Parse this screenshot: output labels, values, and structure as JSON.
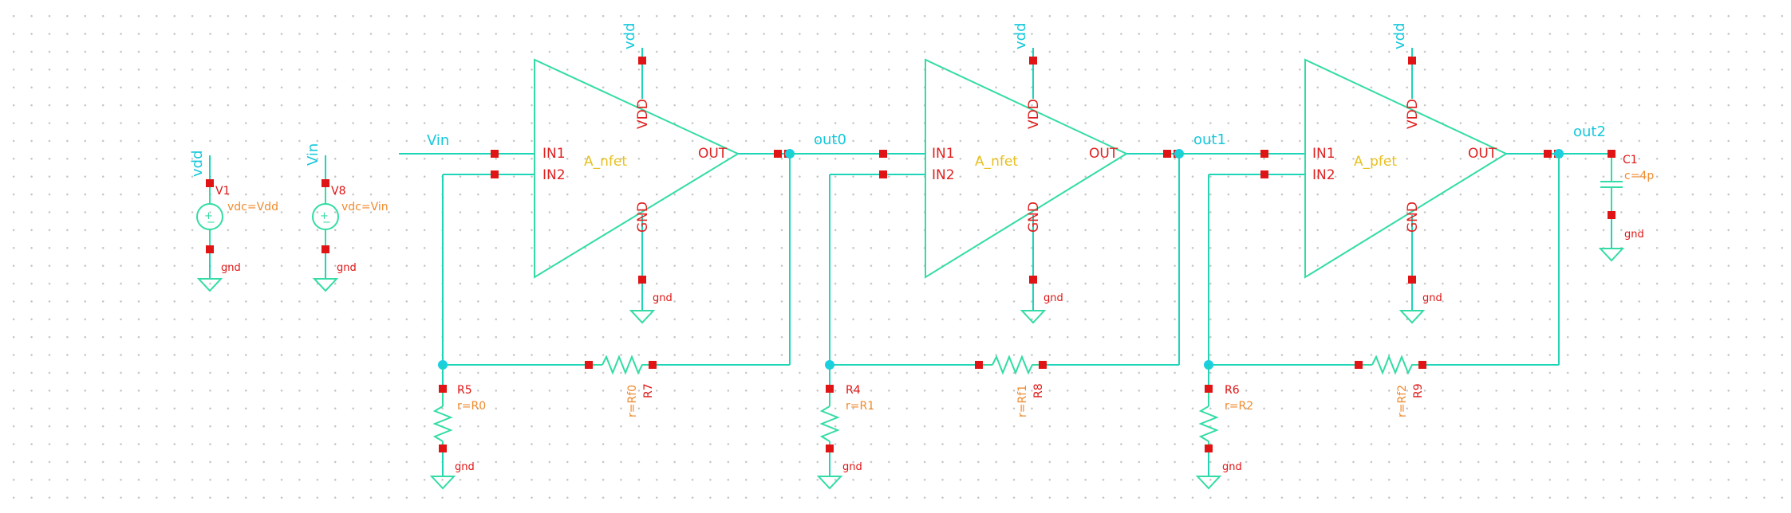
{
  "schematic": {
    "stages": [
      {
        "cell": "A_nfet",
        "in1": "IN1",
        "in2": "IN2",
        "out_pin": "OUT",
        "vdd_pin": "VDD",
        "gnd_pin": "GND",
        "vdd_net": "vdd",
        "gnd_net": "gnd",
        "in_net": "Vin",
        "out_net": "out0"
      },
      {
        "cell": "A_nfet",
        "in1": "IN1",
        "in2": "IN2",
        "out_pin": "OUT",
        "vdd_pin": "VDD",
        "gnd_pin": "GND",
        "vdd_net": "vdd",
        "gnd_net": "gnd",
        "in_net": "out0",
        "out_net": "out1"
      },
      {
        "cell": "A_pfet",
        "in1": "IN1",
        "in2": "IN2",
        "out_pin": "OUT",
        "vdd_pin": "VDD",
        "gnd_pin": "GND",
        "vdd_net": "vdd",
        "gnd_net": "gnd",
        "in_net": "out1",
        "out_net": "out2"
      }
    ],
    "feedback_resistors": [
      {
        "name": "R7",
        "param": "r=Rf0"
      },
      {
        "name": "R8",
        "param": "r=Rf1"
      },
      {
        "name": "R9",
        "param": "r=Rf2"
      }
    ],
    "ground_resistors": [
      {
        "name": "R5",
        "param": "r=R0",
        "gnd_net": "gnd"
      },
      {
        "name": "R4",
        "param": "r=R1",
        "gnd_net": "gnd"
      },
      {
        "name": "R6",
        "param": "r=R2",
        "gnd_net": "gnd"
      }
    ],
    "sources": [
      {
        "name": "V1",
        "net": "vdd",
        "param": "vdc=Vdd",
        "gnd_net": "gnd"
      },
      {
        "name": "V8",
        "net": "Vin",
        "param": "vdc=Vin",
        "gnd_net": "gnd"
      }
    ],
    "load_cap": {
      "name": "C1",
      "param": "c=4p",
      "gnd_net": "gnd"
    },
    "colors": {
      "wire": "#1fd5b8",
      "pin": "#e01414",
      "symbol": "#33dca6",
      "net_label": "#14c8dc",
      "instance": "#e8c020",
      "param": "#f08a2c"
    }
  }
}
